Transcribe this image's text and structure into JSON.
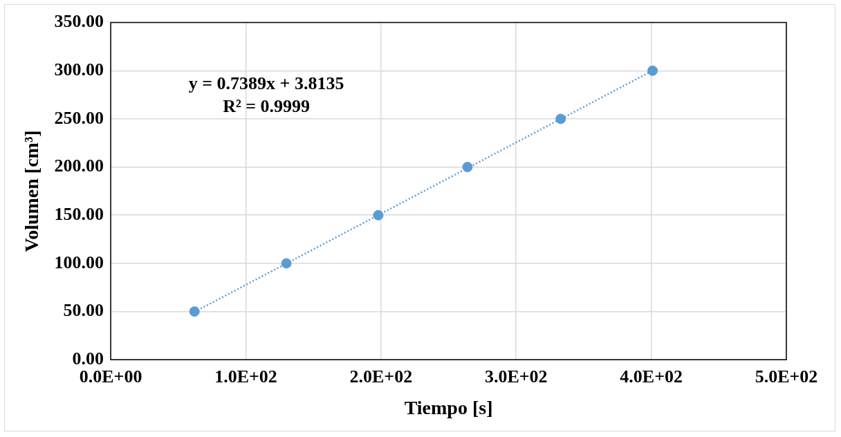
{
  "chart_data": {
    "type": "scatter",
    "xlabel": "Tiempo [s]",
    "ylabel": "Volumen [cm³]",
    "xlim": [
      0,
      500
    ],
    "xticks": [
      {
        "value": 0,
        "label": "0.0E+00"
      },
      {
        "value": 100,
        "label": "1.0E+02"
      },
      {
        "value": 200,
        "label": "2.0E+02"
      },
      {
        "value": 300,
        "label": "3.0E+02"
      },
      {
        "value": 400,
        "label": "4.0E+02"
      },
      {
        "value": 500,
        "label": "5.0E+02"
      }
    ],
    "ylim": [
      0,
      350
    ],
    "yticks": [
      {
        "value": 0,
        "label": "0.00"
      },
      {
        "value": 50,
        "label": "50.00"
      },
      {
        "value": 100,
        "label": "100.00"
      },
      {
        "value": 150,
        "label": "150.00"
      },
      {
        "value": 200,
        "label": "200.00"
      },
      {
        "value": 250,
        "label": "250.00"
      },
      {
        "value": 300,
        "label": "300.00"
      },
      {
        "value": 350,
        "label": "350.00"
      }
    ],
    "grid": true,
    "marker": "circle",
    "series": [
      {
        "type": "scatter",
        "color": "#5b9bd5",
        "x": [
          62,
          130,
          198,
          264,
          333,
          401
        ],
        "values": [
          50,
          100,
          150,
          200,
          250,
          300
        ]
      },
      {
        "type": "line",
        "color": "#5b9bd5",
        "x": [
          62,
          401
        ],
        "values": [
          49.6,
          300.1
        ],
        "marker": "none",
        "line_style": "dotted"
      }
    ],
    "annotations": [
      "y = 0.7389x + 3.8135",
      "R² = 0.9999"
    ]
  }
}
